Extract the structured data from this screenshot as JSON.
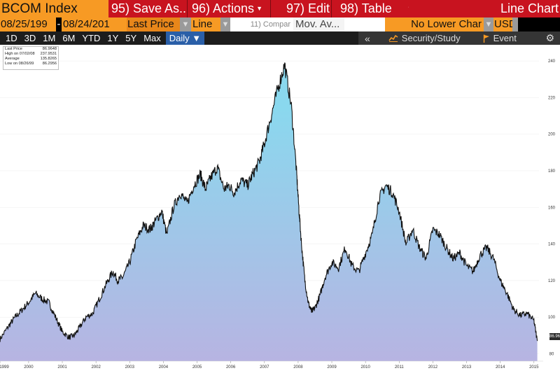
{
  "toolbar": {
    "ticker": "BCOM Index",
    "menu": [
      {
        "label": "95) Save As...",
        "dropdown": false
      },
      {
        "label": "96) Actions",
        "dropdown": true
      },
      {
        "label": "97) Edit",
        "dropdown": true
      },
      {
        "label": "98) Table",
        "dropdown": true
      }
    ],
    "chart_type_title": "Line Chart"
  },
  "settings": {
    "start_date": "08/25/199",
    "end_date": "08/24/201",
    "field": "Last Price",
    "style": "Line",
    "compare_placeholder": "11) Compar",
    "study": "Mov. Av...",
    "lower_chart": "No Lower Char",
    "currency": "USD"
  },
  "ranges": [
    "1D",
    "3D",
    "1M",
    "6M",
    "YTD",
    "1Y",
    "5Y",
    "Max"
  ],
  "frequency": "Daily ▼",
  "tools": {
    "collapse": "«",
    "security_study": "Security/Study",
    "event": "Event",
    "settings_glyph": "⚙"
  },
  "legend": {
    "rows": [
      {
        "label": "Last Price",
        "value": "86.9648"
      },
      {
        "label": "High on 07/02/08",
        "value": "237.9531"
      },
      {
        "label": "Average",
        "value": "135.8265"
      },
      {
        "label": "Low on 08/26/99",
        "value": "86.2956"
      }
    ]
  },
  "last_value_label": "86.96",
  "colors": {
    "area_top": "#8ad8ee",
    "area_bottom": "#b7b4e2",
    "line": "#111111",
    "accent_orange": "#f79a24",
    "accent_red": "#c8131f"
  },
  "chart_data": {
    "type": "area",
    "title": "",
    "xlabel": "",
    "ylabel": "",
    "ylim": [
      76,
      245
    ],
    "yticks": [
      80,
      100,
      120,
      140,
      160,
      180,
      200,
      220,
      240
    ],
    "xticks": [
      {
        "label": "1999",
        "x": 1999.65
      },
      {
        "label": "2000",
        "x": 2000.5
      },
      {
        "label": "2001",
        "x": 2001.5
      },
      {
        "label": "2002",
        "x": 2002.5
      },
      {
        "label": "2003",
        "x": 2003.5
      },
      {
        "label": "2004",
        "x": 2004.5
      },
      {
        "label": "2005",
        "x": 2005.5
      },
      {
        "label": "2006",
        "x": 2006.5
      },
      {
        "label": "2007",
        "x": 2007.5
      },
      {
        "label": "2008",
        "x": 2008.5
      },
      {
        "label": "2009",
        "x": 2009.5
      },
      {
        "label": "2010",
        "x": 2010.5
      },
      {
        "label": "2011",
        "x": 2011.5
      },
      {
        "label": "2012",
        "x": 2012.5
      },
      {
        "label": "2013",
        "x": 2013.5
      },
      {
        "label": "2014",
        "x": 2014.5
      },
      {
        "label": "2015",
        "x": 2015.5
      }
    ],
    "xlim": [
      1999.65,
      2015.65
    ],
    "series": [
      {
        "name": "Last Price",
        "x": [
          1999.65,
          1999.9,
          2000.1,
          2000.3,
          2000.5,
          2000.7,
          2000.9,
          2001.1,
          2001.3,
          2001.5,
          2001.7,
          2001.85,
          2002.0,
          2002.2,
          2002.4,
          2002.6,
          2002.8,
          2003.0,
          2003.15,
          2003.3,
          2003.5,
          2003.7,
          2003.9,
          2004.1,
          2004.25,
          2004.45,
          2004.6,
          2004.8,
          2005.0,
          2005.2,
          2005.4,
          2005.6,
          2005.75,
          2005.9,
          2006.1,
          2006.3,
          2006.45,
          2006.6,
          2006.8,
          2007.0,
          2007.15,
          2007.35,
          2007.5,
          2007.7,
          2007.9,
          2008.1,
          2008.3,
          2008.45,
          2008.52,
          2008.6,
          2008.7,
          2008.8,
          2008.9,
          2009.0,
          2009.15,
          2009.3,
          2009.5,
          2009.7,
          2009.9,
          2010.1,
          2010.3,
          2010.5,
          2010.7,
          2010.9,
          2011.1,
          2011.3,
          2011.5,
          2011.7,
          2011.9,
          2012.1,
          2012.3,
          2012.5,
          2012.7,
          2012.9,
          2013.1,
          2013.3,
          2013.5,
          2013.7,
          2013.9,
          2014.1,
          2014.3,
          2014.5,
          2014.7,
          2014.9,
          2015.1,
          2015.3,
          2015.5,
          2015.6
        ],
        "y": [
          88,
          95,
          100,
          104,
          108,
          113,
          110,
          108,
          100,
          92,
          89,
          90,
          94,
          100,
          102,
          110,
          118,
          125,
          120,
          122,
          130,
          142,
          150,
          148,
          152,
          158,
          145,
          160,
          168,
          162,
          172,
          178,
          170,
          176,
          182,
          170,
          172,
          168,
          175,
          172,
          178,
          185,
          195,
          210,
          225,
          238,
          215,
          180,
          160,
          140,
          120,
          108,
          103,
          105,
          112,
          122,
          130,
          127,
          138,
          128,
          125,
          135,
          145,
          165,
          172,
          168,
          158,
          140,
          148,
          138,
          132,
          148,
          145,
          138,
          132,
          135,
          128,
          125,
          134,
          138,
          132,
          120,
          113,
          104,
          101,
          102,
          98,
          87
        ]
      }
    ]
  }
}
